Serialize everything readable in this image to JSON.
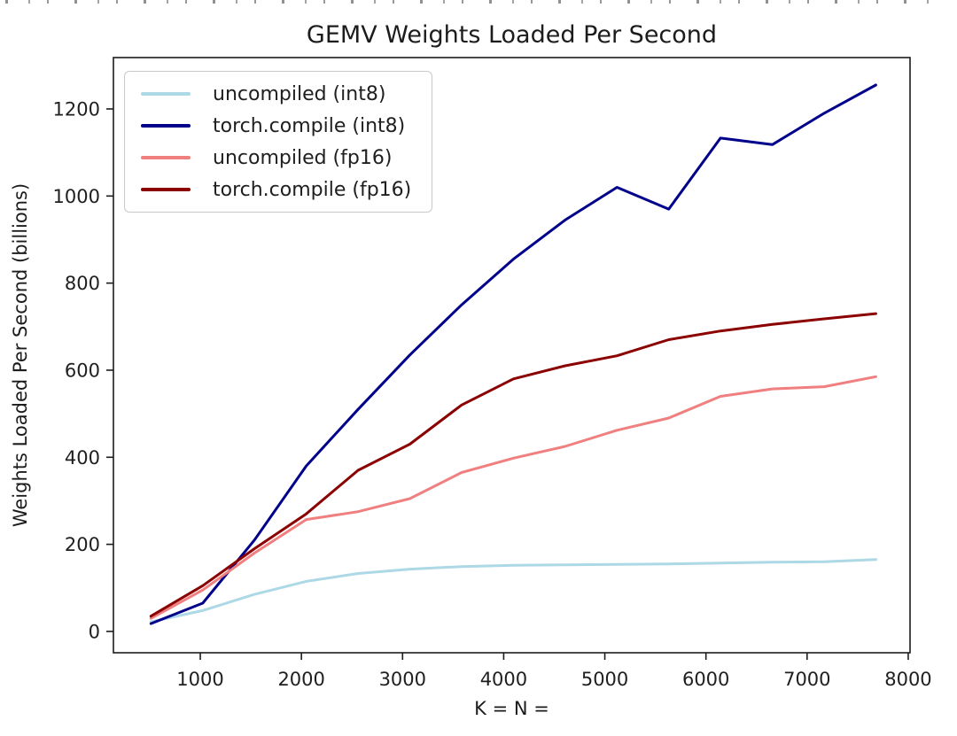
{
  "chart_data": {
    "type": "line",
    "title": "GEMV Weights Loaded Per Second",
    "xlabel": "K = N =",
    "ylabel": "Weights Loaded Per Second (billions)",
    "x": [
      512,
      1024,
      1536,
      2048,
      2560,
      3072,
      3584,
      4096,
      4608,
      5120,
      5632,
      6144,
      6656,
      7168,
      7680
    ],
    "series": [
      {
        "name": "uncompiled (int8)",
        "color": "#ADD8E6",
        "values": [
          22,
          48,
          85,
          115,
          133,
          143,
          149,
          152,
          153,
          154,
          155,
          157,
          159,
          160,
          165
        ]
      },
      {
        "name": "torch.compile (int8)",
        "color": "#00008B",
        "values": [
          18,
          65,
          210,
          380,
          510,
          635,
          750,
          855,
          945,
          1020,
          970,
          1133,
          1118,
          1190,
          1255
        ]
      },
      {
        "name": "uncompiled (fp16)",
        "color": "#F08080",
        "values": [
          30,
          95,
          180,
          257,
          275,
          305,
          365,
          398,
          425,
          462,
          490,
          540,
          557,
          562,
          585
        ]
      },
      {
        "name": "torch.compile (fp16)",
        "color": "#8B0000",
        "values": [
          35,
          105,
          190,
          270,
          370,
          430,
          520,
          580,
          610,
          633,
          670,
          690,
          705,
          718,
          730
        ]
      }
    ],
    "xticks": [
      1000,
      2000,
      3000,
      4000,
      5000,
      6000,
      7000,
      8000
    ],
    "yticks": [
      0,
      200,
      400,
      600,
      800,
      1000,
      1200
    ],
    "xlim": [
      141,
      8018
    ],
    "ylim": [
      -49,
      1318
    ],
    "grid": false,
    "legend_position": "upper left",
    "axis_color": "#1c1c1c",
    "tick_label_color": "#1f1f1f",
    "line_width": 3
  }
}
